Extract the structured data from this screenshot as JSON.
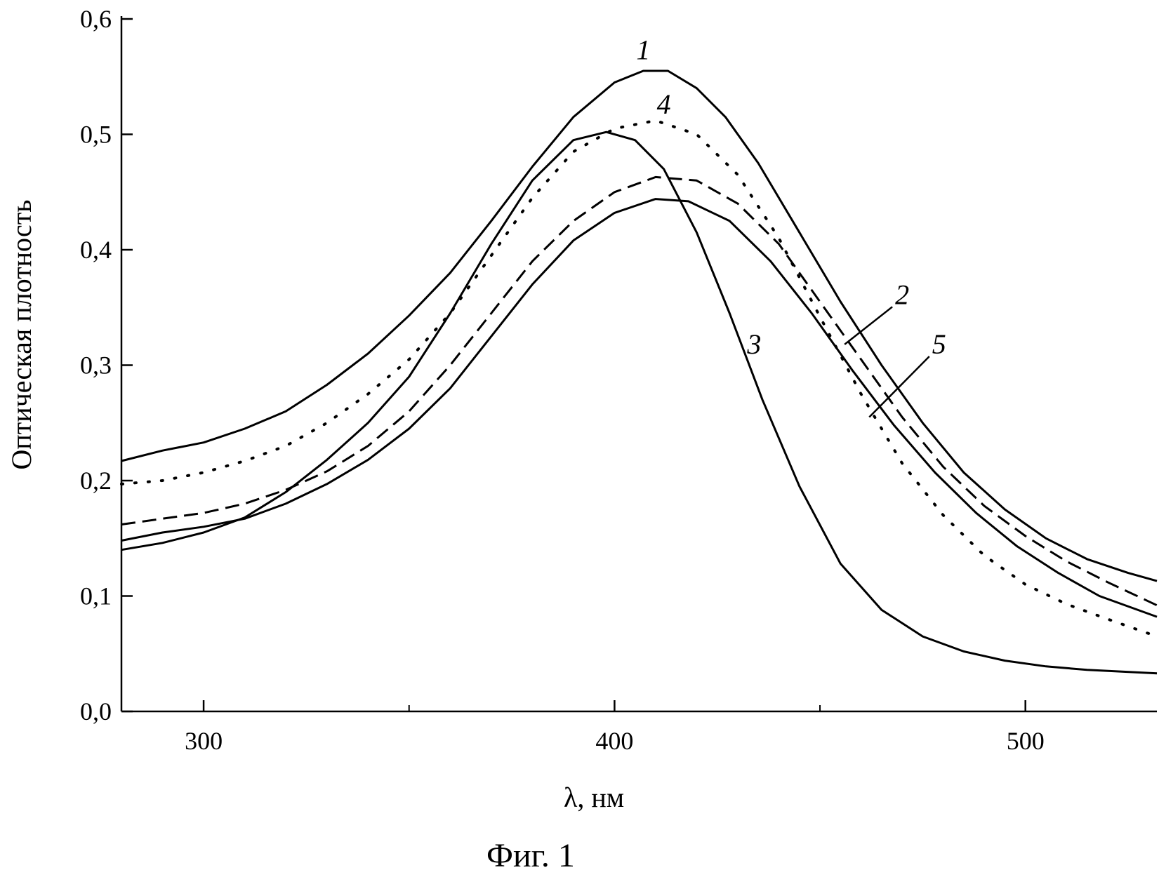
{
  "figure": {
    "caption": "Фиг. 1"
  },
  "chart_data": {
    "type": "line",
    "xlabel": "λ, нм",
    "ylabel": "Оптическая плотность",
    "xlim": [
      280,
      532
    ],
    "ylim": [
      0,
      0.6
    ],
    "grid": false,
    "legend": "none",
    "x_ticks": [
      {
        "value": 300,
        "label": "300"
      },
      {
        "value": 400,
        "label": "400"
      },
      {
        "value": 500,
        "label": "500"
      }
    ],
    "x_minor_ticks": [
      350,
      450
    ],
    "y_ticks": [
      {
        "value": 0.0,
        "label": "0,0"
      },
      {
        "value": 0.1,
        "label": "0,1"
      },
      {
        "value": 0.2,
        "label": "0,2"
      },
      {
        "value": 0.3,
        "label": "0,3"
      },
      {
        "value": 0.4,
        "label": "0,4"
      },
      {
        "value": 0.5,
        "label": "0,5"
      },
      {
        "value": 0.6,
        "label": "0,6"
      }
    ],
    "series": [
      {
        "name": "1",
        "style": "solid",
        "color": "#000000",
        "points": [
          [
            280,
            0.217
          ],
          [
            290,
            0.226
          ],
          [
            300,
            0.233
          ],
          [
            310,
            0.245
          ],
          [
            320,
            0.26
          ],
          [
            330,
            0.283
          ],
          [
            340,
            0.31
          ],
          [
            350,
            0.343
          ],
          [
            360,
            0.38
          ],
          [
            370,
            0.425
          ],
          [
            380,
            0.472
          ],
          [
            390,
            0.515
          ],
          [
            400,
            0.545
          ],
          [
            407,
            0.555
          ],
          [
            413,
            0.555
          ],
          [
            420,
            0.54
          ],
          [
            427,
            0.515
          ],
          [
            435,
            0.475
          ],
          [
            445,
            0.415
          ],
          [
            455,
            0.355
          ],
          [
            465,
            0.3
          ],
          [
            475,
            0.25
          ],
          [
            485,
            0.207
          ],
          [
            495,
            0.175
          ],
          [
            505,
            0.15
          ],
          [
            515,
            0.132
          ],
          [
            525,
            0.12
          ],
          [
            532,
            0.113
          ]
        ]
      },
      {
        "name": "2",
        "style": "dashed",
        "color": "#000000",
        "points": [
          [
            280,
            0.162
          ],
          [
            290,
            0.167
          ],
          [
            300,
            0.172
          ],
          [
            310,
            0.18
          ],
          [
            320,
            0.192
          ],
          [
            330,
            0.208
          ],
          [
            340,
            0.23
          ],
          [
            350,
            0.26
          ],
          [
            360,
            0.3
          ],
          [
            370,
            0.345
          ],
          [
            380,
            0.39
          ],
          [
            390,
            0.425
          ],
          [
            400,
            0.45
          ],
          [
            410,
            0.463
          ],
          [
            420,
            0.46
          ],
          [
            430,
            0.44
          ],
          [
            440,
            0.405
          ],
          [
            450,
            0.355
          ],
          [
            460,
            0.305
          ],
          [
            470,
            0.255
          ],
          [
            480,
            0.212
          ],
          [
            490,
            0.178
          ],
          [
            500,
            0.152
          ],
          [
            510,
            0.13
          ],
          [
            520,
            0.112
          ],
          [
            532,
            0.092
          ]
        ]
      },
      {
        "name": "3",
        "style": "solid",
        "color": "#000000",
        "points": [
          [
            280,
            0.14
          ],
          [
            290,
            0.146
          ],
          [
            300,
            0.155
          ],
          [
            310,
            0.168
          ],
          [
            320,
            0.19
          ],
          [
            330,
            0.218
          ],
          [
            340,
            0.25
          ],
          [
            350,
            0.29
          ],
          [
            360,
            0.345
          ],
          [
            370,
            0.405
          ],
          [
            380,
            0.46
          ],
          [
            390,
            0.495
          ],
          [
            398,
            0.502
          ],
          [
            405,
            0.495
          ],
          [
            412,
            0.47
          ],
          [
            420,
            0.415
          ],
          [
            428,
            0.345
          ],
          [
            436,
            0.27
          ],
          [
            445,
            0.195
          ],
          [
            455,
            0.128
          ],
          [
            465,
            0.088
          ],
          [
            475,
            0.065
          ],
          [
            485,
            0.052
          ],
          [
            495,
            0.044
          ],
          [
            505,
            0.039
          ],
          [
            515,
            0.036
          ],
          [
            532,
            0.033
          ]
        ]
      },
      {
        "name": "4",
        "style": "dotted",
        "color": "#000000",
        "points": [
          [
            280,
            0.197
          ],
          [
            290,
            0.2
          ],
          [
            300,
            0.207
          ],
          [
            310,
            0.217
          ],
          [
            320,
            0.23
          ],
          [
            330,
            0.25
          ],
          [
            340,
            0.275
          ],
          [
            350,
            0.305
          ],
          [
            360,
            0.345
          ],
          [
            370,
            0.395
          ],
          [
            380,
            0.445
          ],
          [
            390,
            0.485
          ],
          [
            400,
            0.505
          ],
          [
            410,
            0.512
          ],
          [
            420,
            0.5
          ],
          [
            430,
            0.465
          ],
          [
            440,
            0.41
          ],
          [
            450,
            0.342
          ],
          [
            460,
            0.275
          ],
          [
            470,
            0.215
          ],
          [
            480,
            0.17
          ],
          [
            490,
            0.135
          ],
          [
            500,
            0.11
          ],
          [
            510,
            0.093
          ],
          [
            520,
            0.08
          ],
          [
            532,
            0.065
          ]
        ]
      },
      {
        "name": "5",
        "style": "solid",
        "color": "#000000",
        "points": [
          [
            280,
            0.148
          ],
          [
            290,
            0.155
          ],
          [
            300,
            0.16
          ],
          [
            310,
            0.167
          ],
          [
            320,
            0.18
          ],
          [
            330,
            0.197
          ],
          [
            340,
            0.218
          ],
          [
            350,
            0.245
          ],
          [
            360,
            0.28
          ],
          [
            370,
            0.325
          ],
          [
            380,
            0.37
          ],
          [
            390,
            0.408
          ],
          [
            400,
            0.432
          ],
          [
            410,
            0.444
          ],
          [
            418,
            0.442
          ],
          [
            428,
            0.425
          ],
          [
            438,
            0.39
          ],
          [
            448,
            0.345
          ],
          [
            458,
            0.295
          ],
          [
            468,
            0.248
          ],
          [
            478,
            0.207
          ],
          [
            488,
            0.172
          ],
          [
            498,
            0.143
          ],
          [
            508,
            0.12
          ],
          [
            518,
            0.1
          ],
          [
            532,
            0.082
          ]
        ]
      }
    ],
    "annotations": [
      {
        "text": "1",
        "x": 407,
        "y": 0.565,
        "leader": false
      },
      {
        "text": "4",
        "x": 412,
        "y": 0.518,
        "leader": false
      },
      {
        "text": "3",
        "x": 434,
        "y": 0.31,
        "leader": false
      },
      {
        "text": "2",
        "x": 470,
        "y": 0.353,
        "leader": true,
        "to_x": 456,
        "to_y": 0.318
      },
      {
        "text": "5",
        "x": 479,
        "y": 0.31,
        "leader": true,
        "to_x": 462,
        "to_y": 0.255
      }
    ]
  }
}
